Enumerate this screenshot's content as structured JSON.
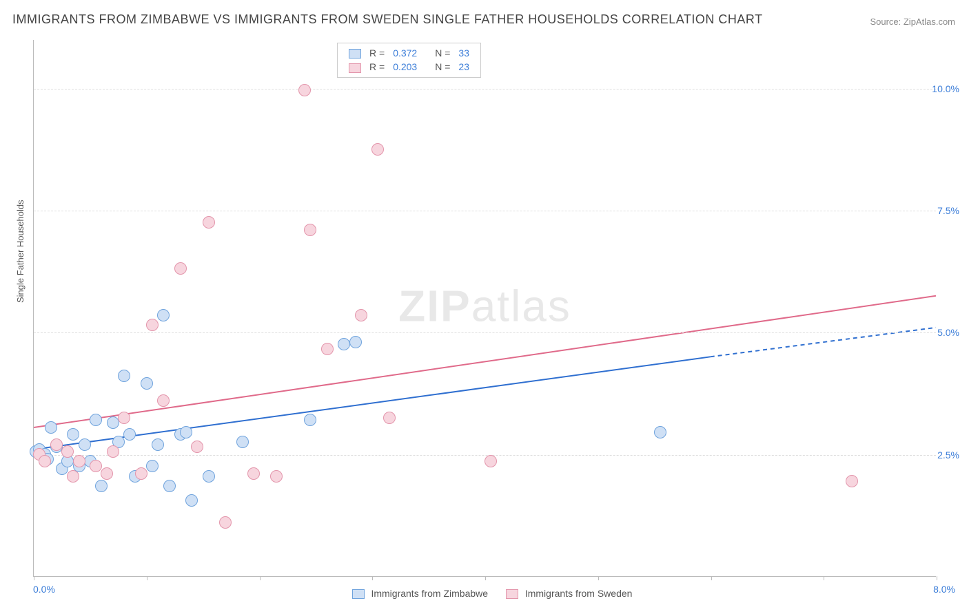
{
  "title": "IMMIGRANTS FROM ZIMBABWE VS IMMIGRANTS FROM SWEDEN SINGLE FATHER HOUSEHOLDS CORRELATION CHART",
  "source_label": "Source: ZipAtlas.com",
  "ylabel": "Single Father Households",
  "watermark_bold": "ZIP",
  "watermark_light": "atlas",
  "chart": {
    "type": "scatter",
    "background_color": "#ffffff",
    "grid_color": "#dddddd",
    "axis_color": "#bbbbbb",
    "tick_label_color": "#3b7dd8",
    "tick_fontsize": 14,
    "label_color": "#555555",
    "label_fontsize": 13,
    "title_fontsize": 18,
    "xlim": [
      0,
      8
    ],
    "ylim": [
      0,
      11
    ],
    "yticks": [
      2.5,
      5.0,
      7.5,
      10.0
    ],
    "ytick_labels": [
      "2.5%",
      "5.0%",
      "7.5%",
      "10.0%"
    ],
    "xticks": [
      0,
      1,
      2,
      3,
      4,
      5,
      6,
      7,
      8
    ],
    "x_corner_left": "0.0%",
    "x_corner_right": "8.0%",
    "marker_radius": 9,
    "marker_border_width": 1.5,
    "trend_line_width": 2
  },
  "series": [
    {
      "name": "Immigrants from Zimbabwe",
      "fill": "#cfe0f5",
      "stroke": "#6fa3dd",
      "trend_color": "#2f6fd0",
      "r": "0.372",
      "n": "33",
      "trend": {
        "x1": 0.0,
        "y1": 2.6,
        "x2": 6.0,
        "y2": 4.5,
        "x_dash_to": 8.0,
        "y_dash_to": 5.1
      },
      "points": [
        [
          0.02,
          2.55
        ],
        [
          0.05,
          2.6
        ],
        [
          0.1,
          2.5
        ],
        [
          0.12,
          2.4
        ],
        [
          0.15,
          3.05
        ],
        [
          0.2,
          2.65
        ],
        [
          0.25,
          2.2
        ],
        [
          0.3,
          2.35
        ],
        [
          0.35,
          2.9
        ],
        [
          0.4,
          2.25
        ],
        [
          0.45,
          2.7
        ],
        [
          0.5,
          2.35
        ],
        [
          0.55,
          3.2
        ],
        [
          0.6,
          1.85
        ],
        [
          0.7,
          3.15
        ],
        [
          0.75,
          2.75
        ],
        [
          0.8,
          4.1
        ],
        [
          0.85,
          2.9
        ],
        [
          0.9,
          2.05
        ],
        [
          1.0,
          3.95
        ],
        [
          1.05,
          2.25
        ],
        [
          1.1,
          2.7
        ],
        [
          1.15,
          5.35
        ],
        [
          1.2,
          1.85
        ],
        [
          1.3,
          2.9
        ],
        [
          1.35,
          2.95
        ],
        [
          1.4,
          1.55
        ],
        [
          1.55,
          2.05
        ],
        [
          1.85,
          2.75
        ],
        [
          2.45,
          3.2
        ],
        [
          2.75,
          4.75
        ],
        [
          2.85,
          4.8
        ],
        [
          5.55,
          2.95
        ]
      ]
    },
    {
      "name": "Immigrants from Sweden",
      "fill": "#f7d5de",
      "stroke": "#e395ab",
      "trend_color": "#e06a8a",
      "r": "0.203",
      "n": "23",
      "trend": {
        "x1": 0.0,
        "y1": 3.05,
        "x2": 8.0,
        "y2": 5.75,
        "x_dash_to": 8.0,
        "y_dash_to": 5.75
      },
      "points": [
        [
          0.05,
          2.5
        ],
        [
          0.1,
          2.35
        ],
        [
          0.2,
          2.7
        ],
        [
          0.3,
          2.55
        ],
        [
          0.35,
          2.05
        ],
        [
          0.4,
          2.35
        ],
        [
          0.55,
          2.25
        ],
        [
          0.65,
          2.1
        ],
        [
          0.7,
          2.55
        ],
        [
          0.8,
          3.25
        ],
        [
          0.95,
          2.1
        ],
        [
          1.05,
          5.15
        ],
        [
          1.15,
          3.6
        ],
        [
          1.3,
          6.3
        ],
        [
          1.45,
          2.65
        ],
        [
          1.55,
          7.25
        ],
        [
          1.7,
          1.1
        ],
        [
          1.95,
          2.1
        ],
        [
          2.15,
          2.05
        ],
        [
          2.4,
          9.95
        ],
        [
          2.45,
          7.1
        ],
        [
          2.6,
          4.65
        ],
        [
          2.9,
          5.35
        ],
        [
          3.05,
          8.75
        ],
        [
          3.15,
          3.25
        ],
        [
          4.05,
          2.35
        ],
        [
          7.25,
          1.95
        ]
      ]
    }
  ],
  "legend_top": {
    "r_label": "R  =",
    "n_label": "N  ="
  },
  "legend_bottom": {
    "series1": "Immigrants from Zimbabwe",
    "series2": "Immigrants from Sweden"
  }
}
